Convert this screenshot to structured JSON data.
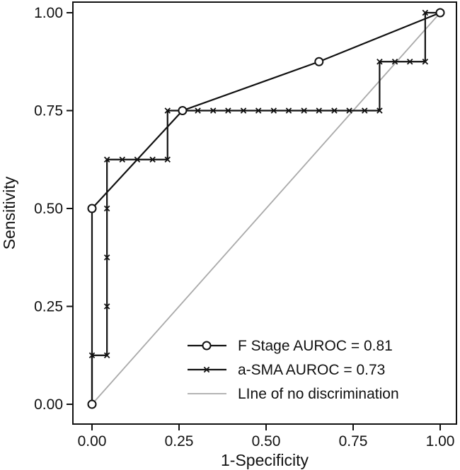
{
  "chart_data": {
    "type": "line",
    "title": "",
    "xlabel": "1-Specificity",
    "ylabel": "Sensitivity",
    "xlim": [
      0,
      1
    ],
    "ylim": [
      0,
      1
    ],
    "x_ticks": [
      "0.00",
      "0.25",
      "0.50",
      "0.75",
      "1.00"
    ],
    "y_ticks": [
      "0.00",
      "0.25",
      "0.50",
      "0.75",
      "1.00"
    ],
    "grid": false,
    "legend_position": "bottom-right",
    "series": [
      {
        "name": "F Stage AUROC = 0.81",
        "marker": "circle",
        "color": "#111111",
        "points": [
          [
            0,
            0
          ],
          [
            0,
            0.5
          ],
          [
            0.26,
            0.75
          ],
          [
            0.652,
            0.875
          ],
          [
            1,
            1
          ]
        ]
      },
      {
        "name": "a-SMA AUROC = 0.73",
        "marker": "x",
        "color": "#111111",
        "points": [
          [
            0,
            0
          ],
          [
            0,
            0.125
          ],
          [
            0.043,
            0.125
          ],
          [
            0.043,
            0.25
          ],
          [
            0.043,
            0.375
          ],
          [
            0.043,
            0.5
          ],
          [
            0.043,
            0.625
          ],
          [
            0.087,
            0.625
          ],
          [
            0.13,
            0.625
          ],
          [
            0.174,
            0.625
          ],
          [
            0.217,
            0.625
          ],
          [
            0.217,
            0.75
          ],
          [
            0.26,
            0.75
          ],
          [
            0.304,
            0.75
          ],
          [
            0.348,
            0.75
          ],
          [
            0.391,
            0.75
          ],
          [
            0.435,
            0.75
          ],
          [
            0.478,
            0.75
          ],
          [
            0.522,
            0.75
          ],
          [
            0.565,
            0.75
          ],
          [
            0.609,
            0.75
          ],
          [
            0.652,
            0.75
          ],
          [
            0.696,
            0.75
          ],
          [
            0.739,
            0.75
          ],
          [
            0.783,
            0.75
          ],
          [
            0.826,
            0.75
          ],
          [
            0.826,
            0.875
          ],
          [
            0.87,
            0.875
          ],
          [
            0.913,
            0.875
          ],
          [
            0.957,
            0.875
          ],
          [
            0.957,
            1
          ],
          [
            1,
            1
          ]
        ]
      },
      {
        "name": "LIne of no discrimination",
        "marker": "none",
        "color": "#aaaaaa",
        "points": [
          [
            0,
            0
          ],
          [
            1,
            1
          ]
        ]
      }
    ]
  }
}
